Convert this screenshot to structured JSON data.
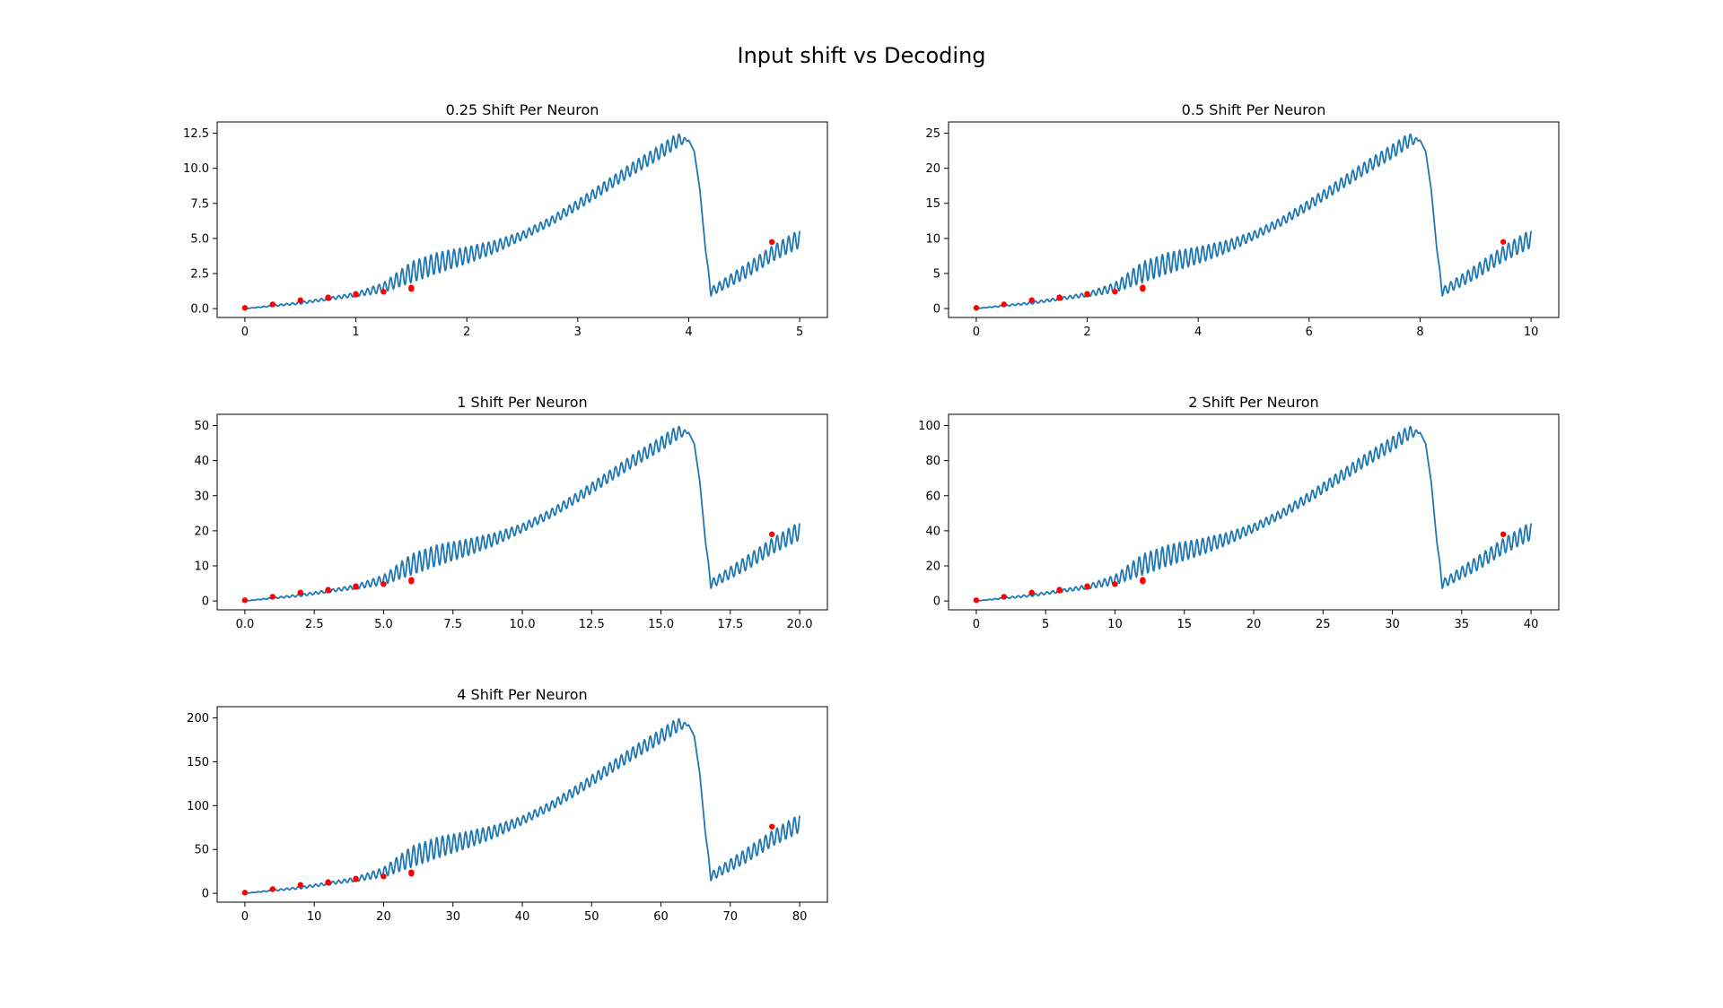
{
  "figure": {
    "title": "Input shift vs Decoding"
  },
  "colors": {
    "line": "#1f77b4",
    "points": "#ff0000",
    "axes": "#000000",
    "background": "#ffffff"
  },
  "chart_data": [
    {
      "type": "line",
      "title": "0.25 Shift Per Neuron",
      "xlabel": "",
      "ylabel": "",
      "xlim": [
        -0.25,
        5.25
      ],
      "ylim": [
        -0.63,
        13.3
      ],
      "xticks": [
        0,
        1,
        2,
        3,
        4,
        5
      ],
      "xtick_labels": [
        "0",
        "1",
        "2",
        "3",
        "4",
        "5"
      ],
      "yticks": [
        0.0,
        2.5,
        5.0,
        7.5,
        10.0,
        12.5
      ],
      "ytick_labels": [
        "0.0",
        "2.5",
        "5.0",
        "7.5",
        "10.0",
        "12.5"
      ],
      "grid": false,
      "series": [
        {
          "style": "line",
          "x": [
            0,
            0.25,
            0.5,
            0.75,
            1.0,
            1.25,
            1.5,
            1.75,
            2.0,
            2.25,
            2.5,
            2.75,
            3.0,
            3.25,
            3.5,
            3.75,
            3.9,
            4.0,
            4.05,
            4.1,
            4.15,
            4.2,
            4.5,
            4.75,
            5.0
          ],
          "y": [
            0.0,
            0.2,
            0.4,
            0.7,
            1.0,
            1.5,
            2.6,
            3.3,
            3.8,
            4.4,
            5.2,
            6.2,
            7.4,
            8.7,
            10.0,
            11.2,
            12.0,
            12.0,
            11.2,
            8.5,
            4.3,
            1.2,
            2.6,
            3.9,
            5.0
          ],
          "osc_amplitude": [
            0.0,
            0.05,
            0.08,
            0.1,
            0.15,
            0.35,
            0.75,
            0.75,
            0.6,
            0.45,
            0.3,
            0.3,
            0.35,
            0.4,
            0.45,
            0.5,
            0.5,
            0.0,
            0.0,
            0.0,
            0.0,
            0.3,
            0.5,
            0.55,
            0.65
          ],
          "osc_period": 0.052
        },
        {
          "style": "scatter",
          "x": [
            0,
            0.25,
            0.5,
            0.75,
            0.75,
            1.0,
            1.0,
            1.25,
            1.5,
            1.5,
            4.75
          ],
          "y": [
            0.05,
            0.3,
            0.6,
            0.8,
            0.75,
            1.0,
            1.05,
            1.2,
            1.5,
            1.4,
            4.75
          ]
        }
      ]
    },
    {
      "type": "line",
      "title": "0.5 Shift Per Neuron",
      "xlabel": "",
      "ylabel": "",
      "xlim": [
        -0.5,
        10.5
      ],
      "ylim": [
        -1.27,
        26.6
      ],
      "xticks": [
        0,
        2,
        4,
        6,
        8,
        10
      ],
      "xtick_labels": [
        "0",
        "2",
        "4",
        "6",
        "8",
        "10"
      ],
      "yticks": [
        0,
        5,
        10,
        15,
        20,
        25
      ],
      "ytick_labels": [
        "0",
        "5",
        "10",
        "15",
        "20",
        "25"
      ],
      "grid": false,
      "series": [
        {
          "style": "line",
          "x": [
            0,
            0.5,
            1.0,
            1.5,
            2.0,
            2.5,
            3.0,
            3.5,
            4.0,
            4.5,
            5.0,
            5.5,
            6.0,
            6.5,
            7.0,
            7.5,
            7.8,
            8.0,
            8.1,
            8.2,
            8.3,
            8.4,
            9.0,
            9.5,
            10.0
          ],
          "y": [
            0.0,
            0.4,
            0.8,
            1.4,
            2.0,
            3.0,
            5.2,
            6.6,
            7.6,
            8.8,
            10.4,
            12.4,
            14.8,
            17.4,
            20.0,
            22.4,
            24.0,
            24.0,
            22.4,
            17.0,
            8.6,
            2.4,
            5.2,
            7.8,
            10.0
          ],
          "osc_amplitude": [
            0.0,
            0.1,
            0.16,
            0.2,
            0.3,
            0.7,
            1.5,
            1.5,
            1.2,
            0.9,
            0.6,
            0.6,
            0.7,
            0.8,
            0.9,
            1.0,
            1.0,
            0.0,
            0.0,
            0.0,
            0.0,
            0.6,
            1.0,
            1.1,
            1.3
          ],
          "osc_period": 0.104
        },
        {
          "style": "scatter",
          "x": [
            0,
            0.5,
            1.0,
            1.5,
            1.5,
            2.0,
            2.0,
            2.5,
            3.0,
            3.0,
            9.5
          ],
          "y": [
            0.1,
            0.6,
            1.2,
            1.6,
            1.5,
            2.0,
            2.1,
            2.4,
            3.0,
            2.8,
            9.5
          ]
        }
      ]
    },
    {
      "type": "line",
      "title": "1 Shift Per Neuron",
      "xlabel": "",
      "ylabel": "",
      "xlim": [
        -1.0,
        21.0
      ],
      "ylim": [
        -2.53,
        53.2
      ],
      "xticks": [
        0.0,
        2.5,
        5.0,
        7.5,
        10.0,
        12.5,
        15.0,
        17.5,
        20.0
      ],
      "xtick_labels": [
        "0.0",
        "2.5",
        "5.0",
        "7.5",
        "10.0",
        "12.5",
        "15.0",
        "17.5",
        "20.0"
      ],
      "yticks": [
        0,
        10,
        20,
        30,
        40,
        50
      ],
      "ytick_labels": [
        "0",
        "10",
        "20",
        "30",
        "40",
        "50"
      ],
      "grid": false,
      "series": [
        {
          "style": "line",
          "x": [
            0,
            1,
            2,
            3,
            4,
            5,
            6,
            7,
            8,
            9,
            10,
            11,
            12,
            13,
            14,
            15,
            15.6,
            16.0,
            16.2,
            16.4,
            16.6,
            16.8,
            18.0,
            19.0,
            20.0
          ],
          "y": [
            0.0,
            0.8,
            1.6,
            2.8,
            4.0,
            6.0,
            10.4,
            13.2,
            15.2,
            17.6,
            20.8,
            24.8,
            29.6,
            34.8,
            40.0,
            44.8,
            48.0,
            48.0,
            44.8,
            34.0,
            17.2,
            4.8,
            10.4,
            15.6,
            20.0
          ],
          "osc_amplitude": [
            0.0,
            0.2,
            0.32,
            0.4,
            0.6,
            1.4,
            3.0,
            3.0,
            2.4,
            1.8,
            1.2,
            1.2,
            1.4,
            1.6,
            1.8,
            2.0,
            2.0,
            0.0,
            0.0,
            0.0,
            0.0,
            1.2,
            2.0,
            2.2,
            2.6
          ],
          "osc_period": 0.208
        },
        {
          "style": "scatter",
          "x": [
            0,
            1,
            2,
            3,
            3,
            4,
            4,
            5,
            6,
            6,
            19
          ],
          "y": [
            0.2,
            1.2,
            2.4,
            3.2,
            3.0,
            4.0,
            4.2,
            4.8,
            6.0,
            5.6,
            19.0
          ]
        }
      ]
    },
    {
      "type": "line",
      "title": "2 Shift Per Neuron",
      "xlabel": "",
      "ylabel": "",
      "xlim": [
        -2.0,
        42.0
      ],
      "ylim": [
        -5.06,
        106.4
      ],
      "xticks": [
        0,
        5,
        10,
        15,
        20,
        25,
        30,
        35,
        40
      ],
      "xtick_labels": [
        "0",
        "5",
        "10",
        "15",
        "20",
        "25",
        "30",
        "35",
        "40"
      ],
      "yticks": [
        0,
        20,
        40,
        60,
        80,
        100
      ],
      "ytick_labels": [
        "0",
        "20",
        "40",
        "60",
        "80",
        "100"
      ],
      "grid": false,
      "series": [
        {
          "style": "line",
          "x": [
            0,
            2,
            4,
            6,
            8,
            10,
            12,
            14,
            16,
            18,
            20,
            22,
            24,
            26,
            28,
            30,
            31.2,
            32.0,
            32.4,
            32.8,
            33.2,
            33.6,
            36.0,
            38.0,
            40.0
          ],
          "y": [
            0.0,
            1.6,
            3.2,
            5.6,
            8.0,
            12.0,
            20.8,
            26.4,
            30.4,
            35.2,
            41.6,
            49.6,
            59.2,
            69.6,
            80.0,
            89.6,
            96.0,
            96.0,
            89.6,
            68.0,
            34.4,
            9.6,
            20.8,
            31.2,
            40.0
          ],
          "osc_amplitude": [
            0.0,
            0.4,
            0.64,
            0.8,
            1.2,
            2.8,
            6.0,
            6.0,
            4.8,
            3.6,
            2.4,
            2.4,
            2.8,
            3.2,
            3.6,
            4.0,
            4.0,
            0.0,
            0.0,
            0.0,
            0.0,
            2.4,
            4.0,
            4.4,
            5.2
          ],
          "osc_period": 0.416
        },
        {
          "style": "scatter",
          "x": [
            0,
            2,
            4,
            6,
            6,
            8,
            8,
            10,
            12,
            12,
            38
          ],
          "y": [
            0.4,
            2.4,
            4.8,
            6.4,
            6.0,
            8.0,
            8.4,
            9.6,
            12.0,
            11.2,
            38.0
          ]
        }
      ]
    },
    {
      "type": "line",
      "title": "4 Shift Per Neuron",
      "xlabel": "",
      "ylabel": "",
      "xlim": [
        -4.0,
        84.0
      ],
      "ylim": [
        -10.1,
        212.8
      ],
      "xticks": [
        0,
        10,
        20,
        30,
        40,
        50,
        60,
        70,
        80
      ],
      "xtick_labels": [
        "0",
        "10",
        "20",
        "30",
        "40",
        "50",
        "60",
        "70",
        "80"
      ],
      "yticks": [
        0,
        50,
        100,
        150,
        200
      ],
      "ytick_labels": [
        "0",
        "50",
        "100",
        "150",
        "200"
      ],
      "grid": false,
      "series": [
        {
          "style": "line",
          "x": [
            0,
            4,
            8,
            12,
            16,
            20,
            24,
            28,
            32,
            36,
            40,
            44,
            48,
            52,
            56,
            60,
            62.4,
            64.0,
            64.8,
            65.6,
            66.4,
            67.2,
            72.0,
            76.0,
            80.0
          ],
          "y": [
            0.0,
            3.2,
            6.4,
            11.2,
            16.0,
            24.0,
            41.6,
            52.8,
            60.8,
            70.4,
            83.2,
            99.2,
            118.4,
            139.2,
            160.0,
            179.2,
            192.0,
            192.0,
            179.2,
            136.0,
            68.8,
            19.2,
            41.6,
            62.4,
            80.0
          ],
          "osc_amplitude": [
            0.0,
            0.8,
            1.28,
            1.6,
            2.4,
            5.6,
            12.0,
            12.0,
            9.6,
            7.2,
            4.8,
            4.8,
            5.6,
            6.4,
            7.2,
            8.0,
            8.0,
            0.0,
            0.0,
            0.0,
            0.0,
            4.8,
            8.0,
            8.8,
            10.4
          ],
          "osc_period": 0.832
        },
        {
          "style": "scatter",
          "x": [
            0,
            4,
            8,
            12,
            12,
            16,
            16,
            20,
            24,
            24,
            76
          ],
          "y": [
            0.8,
            4.8,
            9.6,
            12.8,
            12.0,
            16.0,
            16.8,
            19.2,
            24.0,
            22.4,
            76.0
          ]
        }
      ]
    }
  ]
}
